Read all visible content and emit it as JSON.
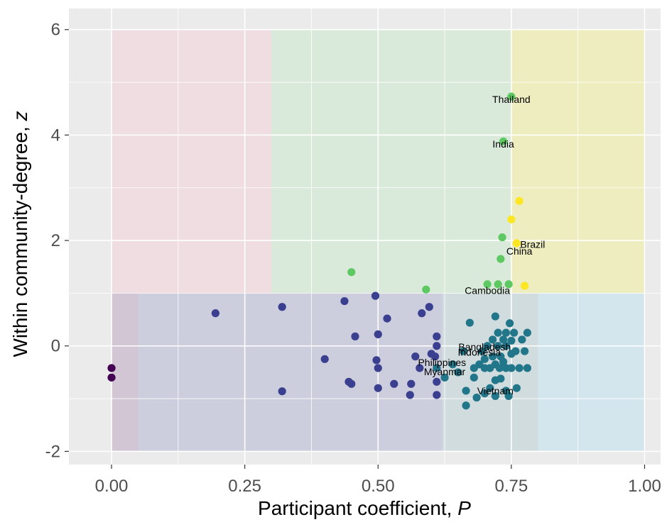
{
  "chart_data": {
    "type": "scatter",
    "title": "",
    "xlabel": "Participant coefficient, ",
    "xlabel_italic": "P",
    "ylabel": "Within community-degree, ",
    "ylabel_italic": "z",
    "xlim": [
      -0.08,
      1.03
    ],
    "ylim": [
      -2.25,
      6.4
    ],
    "x_ticks": [
      0.0,
      0.25,
      0.5,
      0.75,
      1.0
    ],
    "x_tick_labels": [
      "0.00",
      "0.25",
      "0.50",
      "0.75",
      "1.00"
    ],
    "y_ticks": [
      -2,
      0,
      2,
      4,
      6
    ],
    "y_tick_labels": [
      "-2",
      "0",
      "2",
      "4",
      "6"
    ],
    "grid": true,
    "panel_background": "#ebebeb",
    "regions": [
      {
        "x": [
          0.0,
          0.05
        ],
        "y": [
          -2,
          1
        ],
        "color": "#b59ab8",
        "opacity": 0.45
      },
      {
        "x": [
          0.05,
          0.62
        ],
        "y": [
          -2,
          1
        ],
        "color": "#a6a8cc",
        "opacity": 0.45
      },
      {
        "x": [
          0.62,
          0.8
        ],
        "y": [
          -2,
          1
        ],
        "color": "#b0c9cf",
        "opacity": 0.45
      },
      {
        "x": [
          0.8,
          1.0
        ],
        "y": [
          -2,
          1
        ],
        "color": "#c3e3ee",
        "opacity": 0.6
      },
      {
        "x": [
          0.0,
          0.3
        ],
        "y": [
          1,
          6
        ],
        "color": "#f2d2d8",
        "opacity": 0.55
      },
      {
        "x": [
          0.3,
          0.75
        ],
        "y": [
          1,
          6
        ],
        "color": "#cfe9cf",
        "opacity": 0.6
      },
      {
        "x": [
          0.75,
          1.0
        ],
        "y": [
          1,
          6
        ],
        "color": "#f0eea8",
        "opacity": 0.65
      }
    ],
    "series": [
      {
        "color": "#440154",
        "points": [
          [
            0.0,
            -0.42
          ],
          [
            0.0,
            -0.6
          ]
        ]
      },
      {
        "color": "#3b3f8f",
        "points": [
          [
            0.195,
            0.62
          ],
          [
            0.32,
            0.74
          ],
          [
            0.32,
            -0.86
          ],
          [
            0.4,
            -0.25
          ],
          [
            0.437,
            0.85
          ],
          [
            0.445,
            -0.68
          ],
          [
            0.45,
            -0.72
          ],
          [
            0.457,
            0.18
          ],
          [
            0.495,
            0.95
          ],
          [
            0.497,
            -0.27
          ],
          [
            0.5,
            0.22
          ],
          [
            0.5,
            -0.42
          ],
          [
            0.5,
            -0.8
          ],
          [
            0.517,
            0.52
          ],
          [
            0.53,
            -0.72
          ],
          [
            0.56,
            -0.93
          ],
          [
            0.562,
            -0.72
          ],
          [
            0.57,
            -0.2
          ],
          [
            0.578,
            -0.42
          ],
          [
            0.582,
            0.62
          ],
          [
            0.596,
            0.74
          ],
          [
            0.6,
            -0.15
          ],
          [
            0.607,
            -0.2
          ],
          [
            0.61,
            0.18
          ],
          [
            0.61,
            0.0
          ],
          [
            0.61,
            -0.68
          ],
          [
            0.61,
            -0.93
          ]
        ]
      },
      {
        "color": "#22768a",
        "points": [
          [
            0.61,
            -0.42
          ],
          [
            0.625,
            -0.6
          ],
          [
            0.64,
            -0.35
          ],
          [
            0.65,
            -0.5
          ],
          [
            0.66,
            -0.1
          ],
          [
            0.665,
            -0.85
          ],
          [
            0.665,
            -1.13
          ],
          [
            0.672,
            0.44
          ],
          [
            0.68,
            -0.42
          ],
          [
            0.68,
            -0.6
          ],
          [
            0.685,
            -0.98
          ],
          [
            0.69,
            -0.35
          ],
          [
            0.695,
            -0.1
          ],
          [
            0.7,
            -0.25
          ],
          [
            0.7,
            -0.42
          ],
          [
            0.7,
            -0.9
          ],
          [
            0.705,
            0.0
          ],
          [
            0.71,
            -0.42
          ],
          [
            0.71,
            -0.8
          ],
          [
            0.715,
            0.12
          ],
          [
            0.715,
            -0.2
          ],
          [
            0.72,
            0.56
          ],
          [
            0.72,
            -0.35
          ],
          [
            0.72,
            -0.65
          ],
          [
            0.72,
            -0.95
          ],
          [
            0.725,
            0.0
          ],
          [
            0.725,
            0.25
          ],
          [
            0.728,
            -0.42
          ],
          [
            0.73,
            -0.2
          ],
          [
            0.73,
            -0.62
          ],
          [
            0.735,
            0.12
          ],
          [
            0.735,
            -0.3
          ],
          [
            0.74,
            0.25
          ],
          [
            0.74,
            0.0
          ],
          [
            0.74,
            -0.42
          ],
          [
            0.74,
            -0.85
          ],
          [
            0.745,
            -0.95
          ],
          [
            0.747,
            0.43
          ],
          [
            0.75,
            0.1
          ],
          [
            0.75,
            -0.15
          ],
          [
            0.75,
            -0.42
          ],
          [
            0.755,
            0.25
          ],
          [
            0.758,
            -0.1
          ],
          [
            0.76,
            -0.8
          ],
          [
            0.765,
            -0.42
          ],
          [
            0.77,
            0.12
          ],
          [
            0.775,
            -0.1
          ],
          [
            0.78,
            0.25
          ],
          [
            0.78,
            -0.42
          ]
        ]
      },
      {
        "color": "#5ec962",
        "points": [
          [
            0.45,
            1.4
          ],
          [
            0.59,
            1.07
          ],
          [
            0.705,
            1.17
          ],
          [
            0.725,
            1.17
          ],
          [
            0.73,
            1.65
          ],
          [
            0.733,
            2.06
          ],
          [
            0.735,
            3.88
          ],
          [
            0.745,
            1.17
          ],
          [
            0.75,
            4.73
          ]
        ]
      },
      {
        "color": "#fde725",
        "points": [
          [
            0.75,
            2.4
          ],
          [
            0.76,
            1.95
          ],
          [
            0.765,
            2.75
          ],
          [
            0.775,
            1.14
          ]
        ]
      }
    ],
    "annotations": [
      {
        "text": "Thailand",
        "x": 0.75,
        "y": 4.68
      },
      {
        "text": "India",
        "x": 0.735,
        "y": 3.83
      },
      {
        "text": "Brazil",
        "x": 0.79,
        "y": 1.93
      },
      {
        "text": "China",
        "x": 0.765,
        "y": 1.8
      },
      {
        "text": "Cambodia",
        "x": 0.705,
        "y": 1.05
      },
      {
        "text": "Bangladesh",
        "x": 0.7,
        "y": -0.02
      },
      {
        "text": "Indonesia",
        "x": 0.69,
        "y": -0.12
      },
      {
        "text": "Philippines",
        "x": 0.62,
        "y": -0.31
      },
      {
        "text": "Myanmar",
        "x": 0.625,
        "y": -0.49
      },
      {
        "text": "Vietnam",
        "x": 0.72,
        "y": -0.85
      }
    ]
  }
}
